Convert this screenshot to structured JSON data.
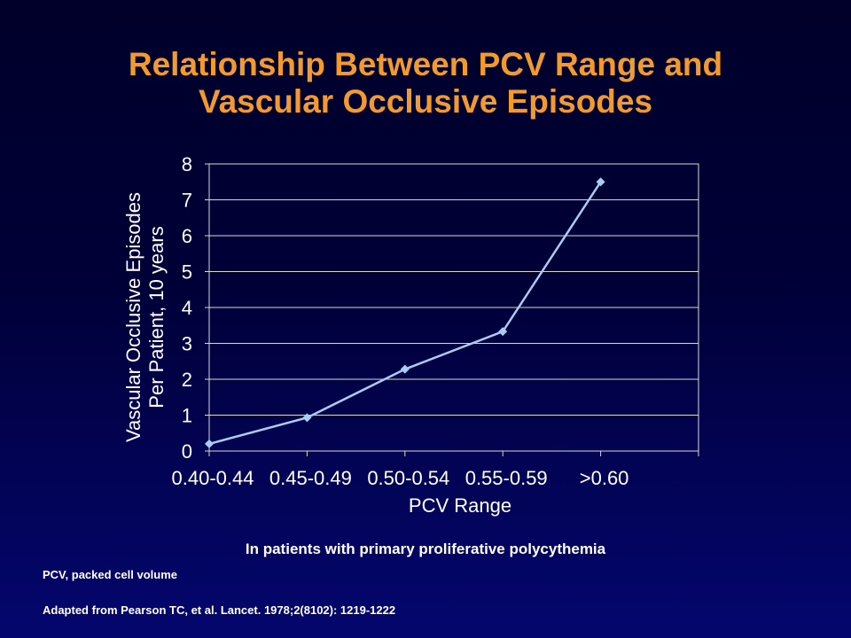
{
  "slide": {
    "title_line1": "Relationship Between PCV Range and",
    "title_line2": "Vascular Occlusive Episodes",
    "caption": "In patients with primary proliferative polycythemia",
    "footnote_abbrev": "PCV, packed cell volume",
    "footnote_source": "Adapted from Pearson TC, et al. Lancet. 1978;2(8102): 1219-1222"
  },
  "colors": {
    "title": "#f29a2e",
    "line": "#a9cdf5",
    "axis_text": "#ffffff",
    "grid": "#d9d9d9"
  },
  "chart_data": {
    "type": "line",
    "categories": [
      "0.40-0.44",
      "0.45-0.49",
      "0.50-0.54",
      "0.55-0.59",
      ">0.60"
    ],
    "series": [
      {
        "values": [
          0.2,
          0.93,
          2.28,
          3.33,
          7.5
        ]
      }
    ],
    "xlabel": "PCV Range",
    "ylabel_line1": "Vascular Occlusive Episodes",
    "ylabel_line2": "Per Patient, 10 years",
    "ylim": [
      0,
      8
    ],
    "yticks": [
      0,
      1,
      2,
      3,
      4,
      5,
      6,
      7,
      8
    ],
    "grid": true,
    "marker": "diamond"
  }
}
